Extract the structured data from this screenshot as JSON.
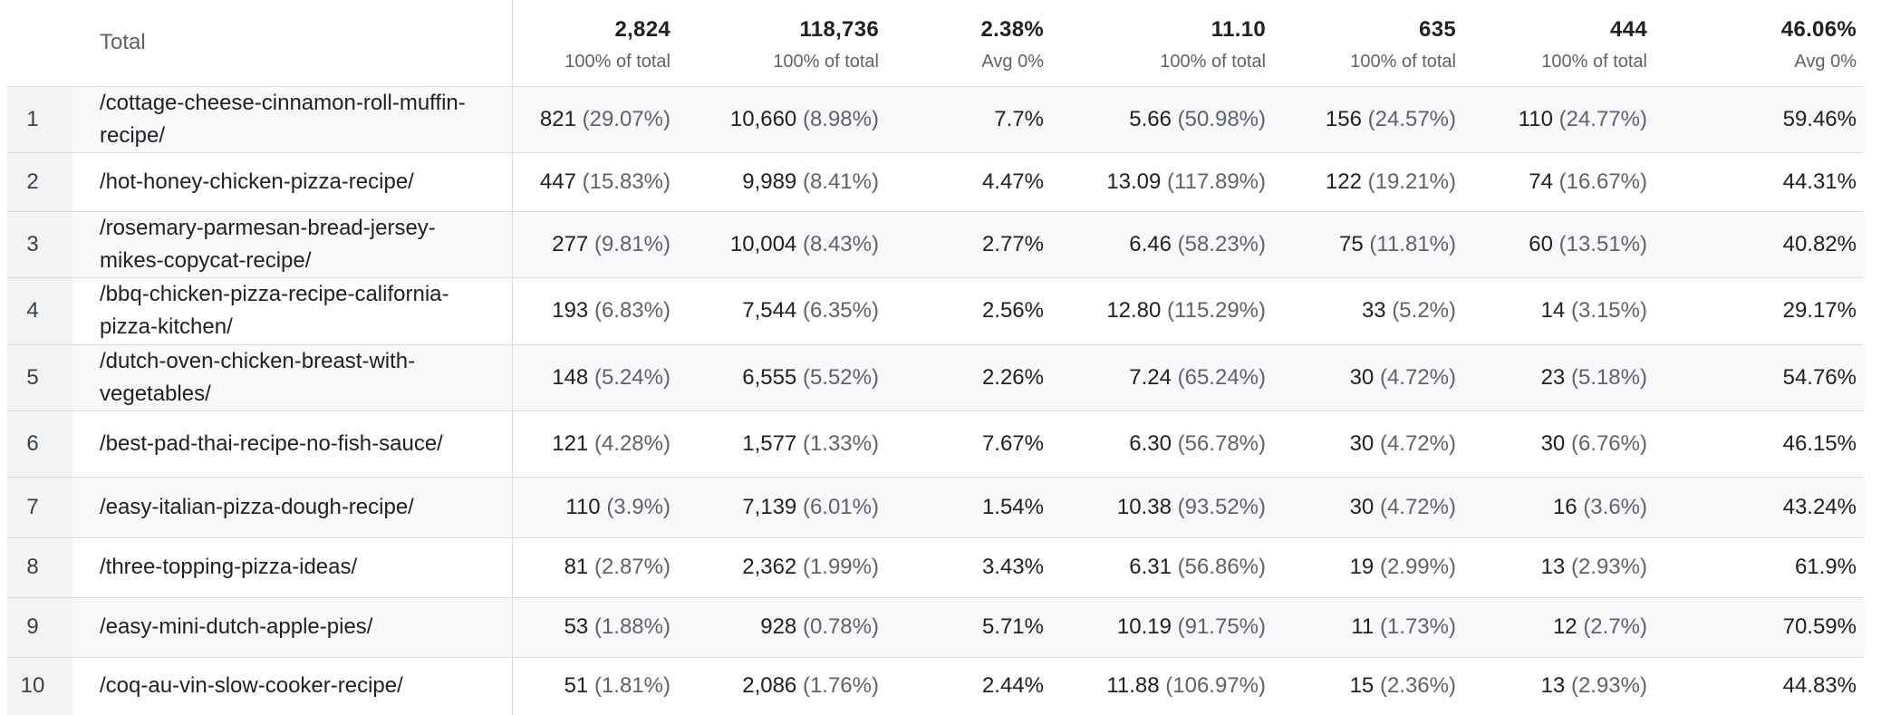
{
  "table": {
    "total_label": "Total",
    "totals": [
      {
        "value": "2,824",
        "sub": "100% of total"
      },
      {
        "value": "118,736",
        "sub": "100% of total"
      },
      {
        "value": "2.38%",
        "sub": "Avg 0%"
      },
      {
        "value": "11.10",
        "sub": "100% of total"
      },
      {
        "value": "635",
        "sub": "100% of total"
      },
      {
        "value": "444",
        "sub": "100% of total"
      },
      {
        "value": "46.06%",
        "sub": "Avg 0%"
      }
    ],
    "rows": [
      {
        "index": "1",
        "page": "/cottage-cheese-cinnamon-roll-muffin-recipe/",
        "cells": [
          {
            "v": "821",
            "p": "(29.07%)"
          },
          {
            "v": "10,660",
            "p": "(8.98%)"
          },
          {
            "v": "7.7%",
            "p": ""
          },
          {
            "v": "5.66",
            "p": "(50.98%)"
          },
          {
            "v": "156",
            "p": "(24.57%)"
          },
          {
            "v": "110",
            "p": "(24.77%)"
          },
          {
            "v": "59.46%",
            "p": ""
          }
        ]
      },
      {
        "index": "2",
        "page": "/hot-honey-chicken-pizza-recipe/",
        "cells": [
          {
            "v": "447",
            "p": "(15.83%)"
          },
          {
            "v": "9,989",
            "p": "(8.41%)"
          },
          {
            "v": "4.47%",
            "p": ""
          },
          {
            "v": "13.09",
            "p": "(117.89%)"
          },
          {
            "v": "122",
            "p": "(19.21%)"
          },
          {
            "v": "74",
            "p": "(16.67%)"
          },
          {
            "v": "44.31%",
            "p": ""
          }
        ]
      },
      {
        "index": "3",
        "page": "/rosemary-parmesan-bread-jersey-mikes-copycat-recipe/",
        "cells": [
          {
            "v": "277",
            "p": "(9.81%)"
          },
          {
            "v": "10,004",
            "p": "(8.43%)"
          },
          {
            "v": "2.77%",
            "p": ""
          },
          {
            "v": "6.46",
            "p": "(58.23%)"
          },
          {
            "v": "75",
            "p": "(11.81%)"
          },
          {
            "v": "60",
            "p": "(13.51%)"
          },
          {
            "v": "40.82%",
            "p": ""
          }
        ]
      },
      {
        "index": "4",
        "page": "/bbq-chicken-pizza-recipe-california-pizza-kitchen/",
        "cells": [
          {
            "v": "193",
            "p": "(6.83%)"
          },
          {
            "v": "7,544",
            "p": "(6.35%)"
          },
          {
            "v": "2.56%",
            "p": ""
          },
          {
            "v": "12.80",
            "p": "(115.29%)"
          },
          {
            "v": "33",
            "p": "(5.2%)"
          },
          {
            "v": "14",
            "p": "(3.15%)"
          },
          {
            "v": "29.17%",
            "p": ""
          }
        ]
      },
      {
        "index": "5",
        "page": "/dutch-oven-chicken-breast-with-vegetables/",
        "cells": [
          {
            "v": "148",
            "p": "(5.24%)"
          },
          {
            "v": "6,555",
            "p": "(5.52%)"
          },
          {
            "v": "2.26%",
            "p": ""
          },
          {
            "v": "7.24",
            "p": "(65.24%)"
          },
          {
            "v": "30",
            "p": "(4.72%)"
          },
          {
            "v": "23",
            "p": "(5.18%)"
          },
          {
            "v": "54.76%",
            "p": ""
          }
        ]
      },
      {
        "index": "6",
        "page": "/best-pad-thai-recipe-no-fish-sauce/",
        "cells": [
          {
            "v": "121",
            "p": "(4.28%)"
          },
          {
            "v": "1,577",
            "p": "(1.33%)"
          },
          {
            "v": "7.67%",
            "p": ""
          },
          {
            "v": "6.30",
            "p": "(56.78%)"
          },
          {
            "v": "30",
            "p": "(4.72%)"
          },
          {
            "v": "30",
            "p": "(6.76%)"
          },
          {
            "v": "46.15%",
            "p": ""
          }
        ]
      },
      {
        "index": "7",
        "page": "/easy-italian-pizza-dough-recipe/",
        "cells": [
          {
            "v": "110",
            "p": "(3.9%)"
          },
          {
            "v": "7,139",
            "p": "(6.01%)"
          },
          {
            "v": "1.54%",
            "p": ""
          },
          {
            "v": "10.38",
            "p": "(93.52%)"
          },
          {
            "v": "30",
            "p": "(4.72%)"
          },
          {
            "v": "16",
            "p": "(3.6%)"
          },
          {
            "v": "43.24%",
            "p": ""
          }
        ]
      },
      {
        "index": "8",
        "page": "/three-topping-pizza-ideas/",
        "cells": [
          {
            "v": "81",
            "p": "(2.87%)"
          },
          {
            "v": "2,362",
            "p": "(1.99%)"
          },
          {
            "v": "3.43%",
            "p": ""
          },
          {
            "v": "6.31",
            "p": "(56.86%)"
          },
          {
            "v": "19",
            "p": "(2.99%)"
          },
          {
            "v": "13",
            "p": "(2.93%)"
          },
          {
            "v": "61.9%",
            "p": ""
          }
        ]
      },
      {
        "index": "9",
        "page": "/easy-mini-dutch-apple-pies/",
        "cells": [
          {
            "v": "53",
            "p": "(1.88%)"
          },
          {
            "v": "928",
            "p": "(0.78%)"
          },
          {
            "v": "5.71%",
            "p": ""
          },
          {
            "v": "10.19",
            "p": "(91.75%)"
          },
          {
            "v": "11",
            "p": "(1.73%)"
          },
          {
            "v": "12",
            "p": "(2.7%)"
          },
          {
            "v": "70.59%",
            "p": ""
          }
        ]
      },
      {
        "index": "10",
        "page": "/coq-au-vin-slow-cooker-recipe/",
        "cells": [
          {
            "v": "51",
            "p": "(1.81%)"
          },
          {
            "v": "2,086",
            "p": "(1.76%)"
          },
          {
            "v": "2.44%",
            "p": ""
          },
          {
            "v": "11.88",
            "p": "(106.97%)"
          },
          {
            "v": "15",
            "p": "(2.36%)"
          },
          {
            "v": "13",
            "p": "(2.93%)"
          },
          {
            "v": "44.83%",
            "p": ""
          }
        ]
      }
    ]
  }
}
